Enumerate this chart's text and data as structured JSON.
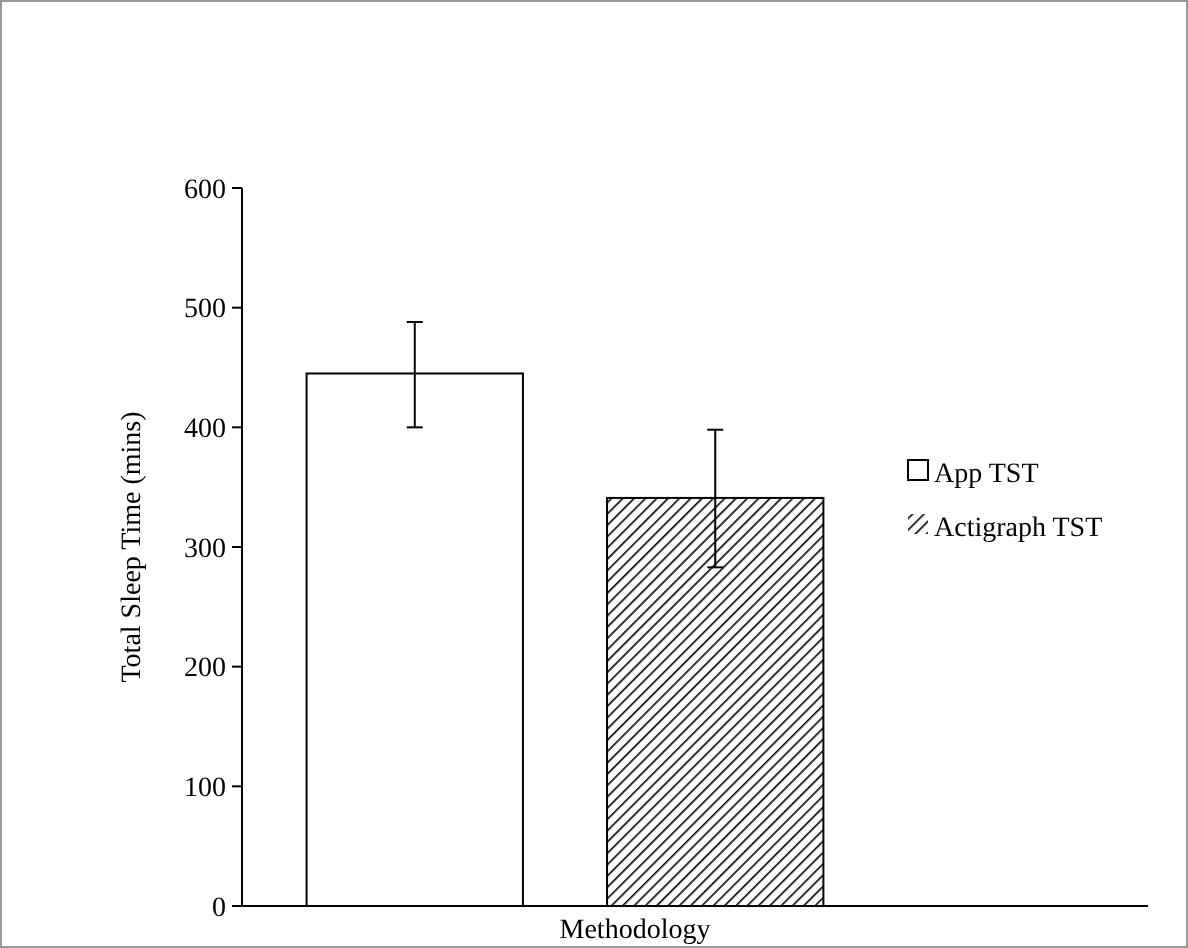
{
  "chart_data": {
    "type": "bar",
    "xlabel": "Methodology",
    "ylabel": "Total Sleep Time (mins)",
    "categories": [
      null
    ],
    "ylim": [
      0,
      600
    ],
    "yticks": [
      0,
      100,
      200,
      300,
      400,
      500,
      600
    ],
    "grid": false,
    "legend": "right",
    "series": [
      {
        "name": "App TST",
        "color": "#ffffff",
        "values": [
          445
        ],
        "errors": [
          [
            400,
            488
          ]
        ]
      },
      {
        "name": "Actigraph TST",
        "color": "#000000",
        "values": [
          341
        ],
        "errors": [
          [
            283,
            398
          ]
        ]
      }
    ]
  }
}
